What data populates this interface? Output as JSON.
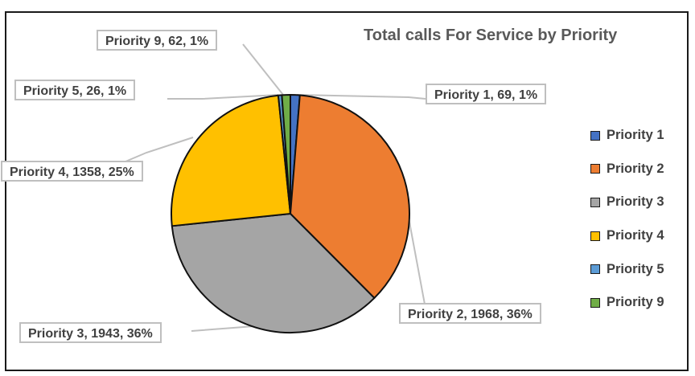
{
  "chart_data": {
    "type": "pie",
    "title": "Total calls For Service by Priority",
    "categories": [
      "Priority 1",
      "Priority 2",
      "Priority 3",
      "Priority 4",
      "Priority 5",
      "Priority 9"
    ],
    "values": [
      69,
      1968,
      1943,
      1358,
      26,
      62
    ],
    "percent_labels": [
      "1%",
      "36%",
      "36%",
      "25%",
      "1%",
      "1%"
    ],
    "data_labels": [
      "Priority 1, 69, 1%",
      "Priority 2, 1968, 36%",
      "Priority 3, 1943, 36%",
      "Priority 4, 1358, 25%",
      "Priority 5, 26, 1%",
      "Priority 9, 62, 1%"
    ],
    "colors": [
      "#4472C4",
      "#ED7D31",
      "#A5A5A5",
      "#FFC000",
      "#5B9BD5",
      "#70AD47"
    ],
    "legend_position": "right"
  }
}
